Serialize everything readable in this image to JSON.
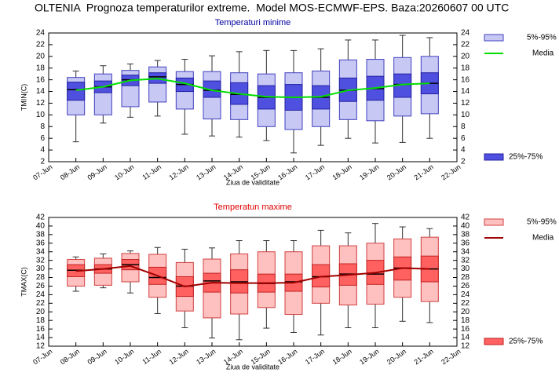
{
  "header": {
    "title": "OLTENIA  Prognoza temperaturilor extreme.  Model MOS-ECMWF-EPS. Baza:20260607 00 UTC"
  },
  "chart_data": [
    {
      "type": "box",
      "title": "Temperaturi minime",
      "title_color": "#0000a0",
      "ylabel": "TMIN(C)",
      "xlabel": "Ziua de validitate",
      "categories": [
        "07-Jun",
        "08-Jun",
        "09-Jun",
        "10-Jun",
        "11-Jun",
        "12-Jun",
        "13-Jun",
        "14-Jun",
        "15-Jun",
        "16-Jun",
        "17-Jun",
        "18-Jun",
        "19-Jun",
        "20-Jun",
        "21-Jun",
        "22-Jun"
      ],
      "ylim": [
        2,
        24
      ],
      "yticks": [
        2,
        4,
        6,
        8,
        10,
        12,
        14,
        16,
        18,
        20,
        22,
        24
      ],
      "whisker_color": "#303030",
      "boxes": {
        "min": [
          null,
          5.4,
          8.6,
          9.6,
          9.8,
          6.7,
          6.4,
          6.2,
          5.6,
          3.5,
          4.8,
          6.0,
          5.2,
          5.3,
          6.0,
          null
        ],
        "median": [
          null,
          14.3,
          14.8,
          16.0,
          16.5,
          15.2,
          14.2,
          13.5,
          13.0,
          13.0,
          13.0,
          14.2,
          14.5,
          15.2,
          15.4,
          null
        ],
        "max": [
          null,
          17.5,
          18.4,
          18.7,
          19.3,
          19.5,
          20.1,
          20.8,
          21.0,
          21.0,
          21.3,
          22.8,
          22.8,
          23.6,
          23.2,
          null
        ]
      },
      "series": [
        {
          "name": "5%-95%",
          "color": "#c8c8f5",
          "stroke": "#4040c0",
          "low": [
            null,
            10.0,
            10.0,
            11.4,
            12.2,
            11.0,
            9.3,
            9.2,
            8.0,
            7.5,
            8.0,
            9.2,
            9.0,
            9.8,
            10.2,
            null
          ],
          "high": [
            null,
            16.4,
            17.0,
            17.6,
            18.2,
            17.4,
            17.4,
            17.2,
            17.0,
            17.2,
            17.5,
            19.4,
            19.5,
            19.8,
            20.0,
            null
          ]
        },
        {
          "name": "Media",
          "color": "#00dd00",
          "values": [
            null,
            14.2,
            14.8,
            15.9,
            16.2,
            15.4,
            14.2,
            13.6,
            13.1,
            13.0,
            13.1,
            14.2,
            14.6,
            15.2,
            15.4,
            null
          ]
        },
        {
          "name": "25%-75%",
          "color": "#5050e0",
          "stroke": "#2020a0",
          "low": [
            null,
            12.5,
            13.8,
            15.0,
            15.4,
            14.0,
            13.0,
            11.8,
            11.0,
            10.8,
            11.0,
            12.3,
            12.5,
            13.0,
            13.6,
            null
          ],
          "high": [
            null,
            15.6,
            15.8,
            16.8,
            17.2,
            16.3,
            15.8,
            15.5,
            15.0,
            15.2,
            15.0,
            16.3,
            16.6,
            17.0,
            17.2,
            null
          ]
        }
      ]
    },
    {
      "type": "box",
      "title": "Temperatun maxime",
      "title_color": "#e00000",
      "ylabel": "TMAX(C)",
      "xlabel": "Ziua de validitate",
      "categories": [
        "07-Jun",
        "08-Jun",
        "09-Jun",
        "10-Jun",
        "11-Jun",
        "12-Jun",
        "13-Jun",
        "14-Jun",
        "15-Jun",
        "16-Jun",
        "17-Jun",
        "18-Jun",
        "19-Jun",
        "20-Jun",
        "21-Jun",
        "22-Jun"
      ],
      "ylim": [
        12,
        42
      ],
      "yticks": [
        12,
        14,
        16,
        18,
        20,
        22,
        24,
        26,
        28,
        30,
        32,
        34,
        36,
        38,
        40,
        42
      ],
      "whisker_color": "#303030",
      "boxes": {
        "min": [
          null,
          24.8,
          25.6,
          24.4,
          19.6,
          16.3,
          13.9,
          13.5,
          16.2,
          15.2,
          14.6,
          16.3,
          16.3,
          17.8,
          17.5,
          null
        ],
        "median": [
          null,
          29.7,
          30.0,
          31.0,
          28.0,
          26.0,
          27.2,
          27.0,
          26.6,
          27.0,
          28.2,
          28.8,
          28.8,
          30.2,
          30.0,
          null
        ],
        "max": [
          null,
          32.8,
          33.5,
          34.2,
          35.0,
          34.6,
          34.9,
          36.6,
          36.6,
          36.6,
          39.0,
          38.4,
          40.6,
          39.8,
          39.4,
          null
        ]
      },
      "series": [
        {
          "name": "5%-95%",
          "color": "#ffc0c0",
          "stroke": "#d04040",
          "low": [
            null,
            26.0,
            26.2,
            27.0,
            23.4,
            20.2,
            18.6,
            19.5,
            21.0,
            19.4,
            22.0,
            21.6,
            21.8,
            23.4,
            22.4,
            null
          ],
          "high": [
            null,
            32.2,
            32.5,
            33.6,
            33.4,
            31.5,
            32.3,
            33.5,
            34.0,
            34.0,
            35.4,
            35.4,
            36.0,
            37.0,
            37.4,
            null
          ]
        },
        {
          "name": "Media",
          "color": "#a00000",
          "values": [
            null,
            29.5,
            30.0,
            30.7,
            28.4,
            25.9,
            26.8,
            26.7,
            26.7,
            26.8,
            28.2,
            28.6,
            29.1,
            30.2,
            30.0,
            null
          ]
        },
        {
          "name": "25%-75%",
          "color": "#ff6060",
          "stroke": "#c02020",
          "low": [
            null,
            28.2,
            29.0,
            29.8,
            26.4,
            23.6,
            24.6,
            24.4,
            24.6,
            24.8,
            25.8,
            26.2,
            26.4,
            27.4,
            27.0,
            null
          ],
          "high": [
            null,
            31.0,
            31.0,
            32.2,
            30.4,
            28.2,
            29.0,
            29.8,
            28.8,
            28.8,
            31.0,
            31.2,
            32.0,
            32.8,
            33.0,
            null
          ]
        }
      ]
    }
  ]
}
